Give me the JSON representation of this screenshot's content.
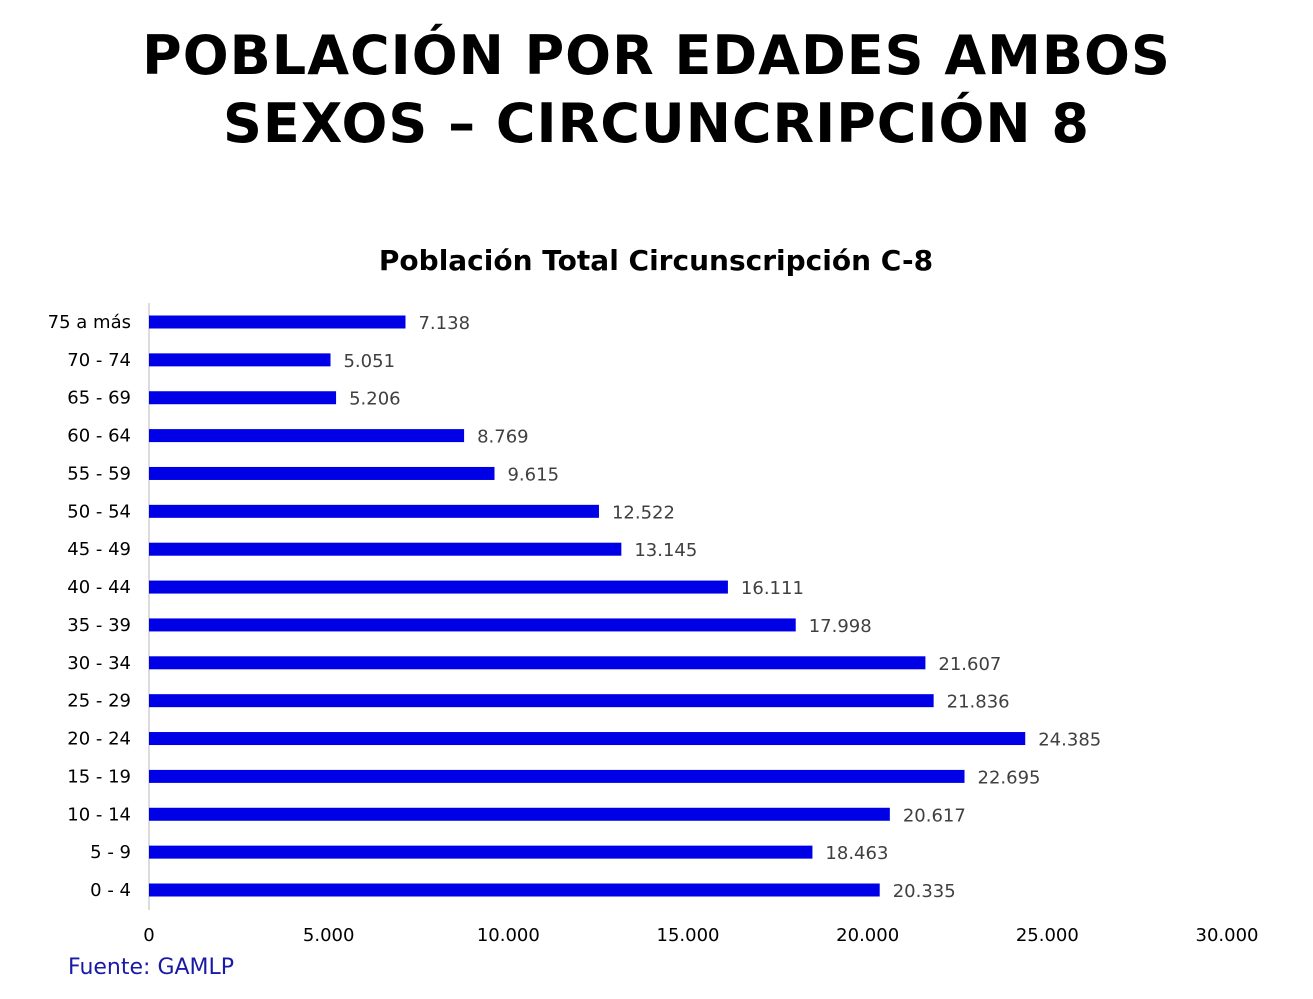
{
  "page": {
    "title_line1": "POBLACIÓN POR EDADES AMBOS",
    "title_line2": "SEXOS – CIRCUNCRIPCIÓN 8",
    "source": "Fuente: GAMLP"
  },
  "chart_data": {
    "type": "bar",
    "orientation": "horizontal",
    "title": "Población Total Circunscripción C-8",
    "xlabel": "",
    "ylabel": "",
    "categories": [
      "75 a más",
      "70 - 74",
      "65 - 69",
      "60 - 64",
      "55 - 59",
      "50 - 54",
      "45 - 49",
      "40 - 44",
      "35 - 39",
      "30 - 34",
      "25 - 29",
      "20 - 24",
      "15 - 19",
      "10 - 14",
      "5 - 9",
      "0 - 4"
    ],
    "values": [
      7138,
      5051,
      5206,
      8769,
      9615,
      12522,
      13145,
      16111,
      17998,
      21607,
      21836,
      24385,
      22695,
      20617,
      18463,
      20335
    ],
    "data_labels": [
      "7.138",
      "5.051",
      "5.206",
      "8.769",
      "9.615",
      "12.522",
      "13.145",
      "16.111",
      "17.998",
      "21.607",
      "21.836",
      "24.385",
      "22.695",
      "20.617",
      "18.463",
      "20.335"
    ],
    "xlim": [
      0,
      30000
    ],
    "x_ticks": [
      0,
      5000,
      10000,
      15000,
      20000,
      25000,
      30000
    ],
    "x_tick_labels": [
      "0",
      "5.000",
      "10.000",
      "15.000",
      "20.000",
      "25.000",
      "30.000"
    ],
    "grid": false,
    "legend": "none",
    "bar_color": "#0000e6"
  }
}
